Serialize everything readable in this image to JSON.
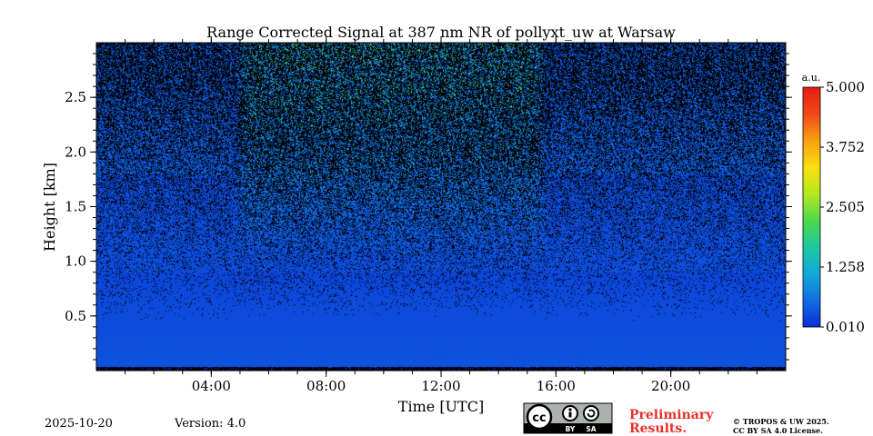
{
  "chart_data": {
    "type": "heatmap",
    "title": "Range Corrected Signal at 387 nm NR of pollyxt_uw at Warsaw",
    "xlabel": "Time [UTC]",
    "ylabel": "Height [km]",
    "xlim": [
      0,
      24
    ],
    "ylim": [
      0,
      3.0
    ],
    "x_ticks": [
      {
        "value": 4,
        "label": "04:00"
      },
      {
        "value": 8,
        "label": "08:00"
      },
      {
        "value": 12,
        "label": "12:00"
      },
      {
        "value": 16,
        "label": "16:00"
      },
      {
        "value": 20,
        "label": "20:00"
      }
    ],
    "x_minor_step": 1,
    "y_ticks": [
      {
        "value": 0.5,
        "label": "0.5"
      },
      {
        "value": 1.0,
        "label": "1.0"
      },
      {
        "value": 1.5,
        "label": "1.5"
      },
      {
        "value": 2.0,
        "label": "2.0"
      },
      {
        "value": 2.5,
        "label": "2.5"
      }
    ],
    "y_minor_step": 0.1,
    "colorbar": {
      "label": "a.u.",
      "min": 0.01,
      "max": 5.0,
      "ticks": [
        {
          "value": 0.01,
          "label": "0.010"
        },
        {
          "value": 1.258,
          "label": "1.258"
        },
        {
          "value": 2.505,
          "label": "2.505"
        },
        {
          "value": 3.752,
          "label": "3.752"
        },
        {
          "value": 5.0,
          "label": "5.000"
        }
      ],
      "colormap": [
        "#0a2dd8",
        "#1070e0",
        "#12a8d8",
        "#1ec8a0",
        "#4ed84a",
        "#b8e820",
        "#f8e010",
        "#f8a010",
        "#f04818",
        "#e81c10"
      ]
    },
    "signal_profile": {
      "surface_value": 0.3,
      "background_value": 0.15,
      "daytime_enhanced_window": [
        5.0,
        15.5
      ],
      "daytime_noise_peak_value": 2.0
    }
  },
  "footer": {
    "date": "2025-10-20",
    "version": "Version: 4.0",
    "license_badge": "cc BY SA",
    "preliminary_line1": "Preliminary",
    "preliminary_line2": "Results.",
    "copyright_line1": "© TROPOS & UW 2025.",
    "copyright_line2": "CC BY SA 4.0 License."
  },
  "colors": {
    "preliminary": "#e8312a",
    "background": "#ffffff"
  }
}
